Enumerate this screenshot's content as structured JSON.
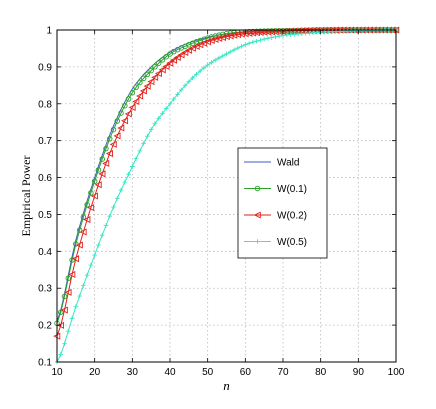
{
  "chart_data": {
    "type": "line",
    "xlabel": "n",
    "ylabel": "Empirical Power",
    "xlim": [
      10,
      100
    ],
    "ylim": [
      0.1,
      1
    ],
    "xticks": [
      "10",
      "20",
      "30",
      "40",
      "50",
      "60",
      "70",
      "80",
      "90",
      "100"
    ],
    "yticks": [
      "0.1",
      "0.2",
      "0.3",
      "0.4",
      "0.5",
      "0.6",
      "0.7",
      "0.8",
      "0.9",
      "1"
    ],
    "grid": true,
    "legend_position": "center-right",
    "x": [
      10,
      15,
      20,
      25,
      30,
      35,
      40,
      45,
      50,
      55,
      60,
      65,
      70,
      75,
      80,
      85,
      90,
      95,
      100
    ],
    "series": [
      {
        "name": "Wald",
        "color": "#3b5fc4",
        "marker": "none",
        "values": [
          0.21,
          0.43,
          0.6,
          0.74,
          0.84,
          0.9,
          0.94,
          0.965,
          0.98,
          0.99,
          0.995,
          0.997,
          0.998,
          0.999,
          1.0,
          1.0,
          1.0,
          1.0,
          1.0
        ]
      },
      {
        "name": "W(0.1)",
        "color": "#2ca02c",
        "marker": "circle",
        "values": [
          0.205,
          0.42,
          0.59,
          0.73,
          0.83,
          0.89,
          0.935,
          0.96,
          0.978,
          0.99,
          0.995,
          0.997,
          0.998,
          0.999,
          1.0,
          1.0,
          1.0,
          1.0,
          1.0
        ]
      },
      {
        "name": "W(0.2)",
        "color": "#e0211b",
        "marker": "triangle-left",
        "values": [
          0.17,
          0.38,
          0.55,
          0.69,
          0.79,
          0.86,
          0.91,
          0.945,
          0.968,
          0.982,
          0.99,
          0.994,
          0.996,
          0.998,
          0.999,
          1.0,
          1.0,
          1.0,
          1.0
        ]
      },
      {
        "name": "W(0.5)",
        "color": "#38e6c4",
        "marker": "plus",
        "values": [
          0.1,
          0.25,
          0.39,
          0.52,
          0.63,
          0.73,
          0.8,
          0.86,
          0.905,
          0.935,
          0.96,
          0.975,
          0.985,
          0.99,
          0.994,
          0.996,
          0.998,
          0.999,
          1.0
        ]
      }
    ]
  }
}
